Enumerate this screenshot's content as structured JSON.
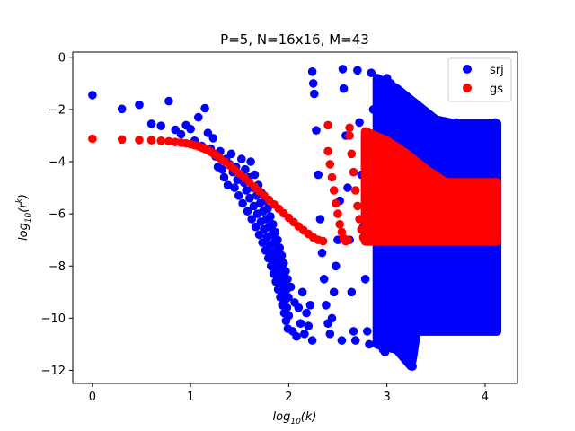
{
  "chart_data": {
    "type": "scatter",
    "title": "P=5, N=16x16, M=43",
    "xlabel": "log",
    "xlabel_sub": "10",
    "xlabel_arg": "(k)",
    "ylabel": "log",
    "ylabel_sub": "10",
    "ylabel_arg": "(r",
    "ylabel_sup": "k",
    "ylabel_close": ")",
    "xlim": [
      -0.2,
      4.33
    ],
    "ylim": [
      -12.5,
      0.2
    ],
    "xticks": [
      0,
      1,
      2,
      3,
      4
    ],
    "xtick_labels": [
      "0",
      "1",
      "2",
      "3",
      "4"
    ],
    "yticks": [
      0,
      -2,
      -4,
      -6,
      -8,
      -10,
      -12
    ],
    "ytick_labels": [
      "0",
      "−2",
      "−4",
      "−6",
      "−8",
      "−10",
      "−12"
    ],
    "grid": false,
    "legend_position": "top-right",
    "series": [
      {
        "name": "srj",
        "color": "#0000ff",
        "x": [
          0,
          0.301,
          0.477,
          0.602,
          0.699,
          0.778,
          0.845,
          0.903,
          0.954,
          1.0,
          1.041,
          1.079,
          1.114,
          1.146,
          1.176,
          1.204,
          1.23,
          1.255,
          1.279,
          1.301,
          1.322,
          1.342,
          1.362,
          1.38,
          1.398,
          1.415,
          1.431,
          1.447,
          1.462,
          1.477,
          1.491,
          1.505,
          1.519,
          1.531,
          1.544,
          1.556,
          1.568,
          1.58,
          1.591,
          1.602,
          1.613,
          1.623,
          1.633,
          1.643,
          1.653,
          1.663,
          1.672,
          1.681,
          1.69,
          1.699,
          1.708,
          1.716,
          1.724,
          1.732,
          1.74,
          1.748,
          1.756,
          1.763,
          1.771,
          1.778,
          1.785,
          1.792,
          1.799,
          1.806,
          1.813,
          1.82,
          1.826,
          1.833,
          1.839,
          1.845,
          1.851,
          1.857,
          1.863,
          1.869,
          1.875,
          1.881,
          1.886,
          1.892,
          1.898,
          1.903,
          1.908,
          1.914,
          1.919,
          1.924,
          1.929,
          1.934,
          1.94,
          1.944,
          1.949,
          1.954,
          1.959,
          1.964,
          1.968,
          1.973,
          1.978,
          1.982,
          1.987,
          1.991,
          1.996,
          2.0,
          2.02,
          2.04,
          2.06,
          2.08,
          2.1,
          2.12,
          2.14,
          2.16,
          2.18,
          2.2,
          2.22,
          2.24,
          2.24,
          2.25,
          2.26,
          2.28,
          2.3,
          2.32,
          2.34,
          2.36,
          2.38,
          2.4,
          2.42,
          2.44,
          2.46,
          2.48,
          2.5,
          2.52,
          2.54,
          2.55,
          2.56,
          2.58,
          2.6,
          2.62,
          2.64,
          2.66,
          2.68,
          2.7,
          2.72,
          2.74,
          2.76,
          2.78,
          2.8,
          2.82,
          2.84,
          2.86,
          2.88,
          2.9,
          2.92,
          2.94,
          2.96,
          2.98,
          3.0,
          3.04,
          3.08,
          3.12,
          3.16,
          3.2,
          3.24,
          3.26,
          3.3,
          3.4,
          3.5,
          3.6,
          3.7,
          3.8,
          3.9,
          4.0,
          4.1,
          4.12
        ],
        "y": [
          -1.45,
          -1.98,
          -1.82,
          -2.55,
          -2.63,
          -1.68,
          -2.78,
          -2.95,
          -2.6,
          -2.75,
          -3.2,
          -2.3,
          -3.4,
          -1.95,
          -2.9,
          -3.5,
          -3.1,
          -3.8,
          -4.2,
          -3.6,
          -4.3,
          -4.6,
          -3.9,
          -4.9,
          -4.1,
          -3.7,
          -4.4,
          -5.0,
          -4.2,
          -4.7,
          -5.3,
          -4.5,
          -3.9,
          -5.6,
          -4.8,
          -4.3,
          -5.1,
          -5.9,
          -4.6,
          -5.4,
          -4.0,
          -6.2,
          -5.0,
          -5.7,
          -4.5,
          -6.5,
          -5.3,
          -6.0,
          -4.9,
          -6.8,
          -5.6,
          -6.3,
          -5.2,
          -7.1,
          -5.9,
          -6.6,
          -5.5,
          -7.4,
          -6.2,
          -6.9,
          -5.8,
          -7.7,
          -6.5,
          -7.2,
          -6.1,
          -8.0,
          -6.8,
          -7.5,
          -6.4,
          -8.3,
          -7.1,
          -7.8,
          -6.7,
          -8.6,
          -7.4,
          -8.1,
          -7.0,
          -8.9,
          -7.7,
          -8.4,
          -7.3,
          -9.2,
          -8.0,
          -8.7,
          -7.6,
          -9.5,
          -8.3,
          -9.0,
          -7.9,
          -9.8,
          -8.6,
          -9.3,
          -8.2,
          -10.1,
          -8.9,
          -9.6,
          -8.5,
          -10.4,
          -9.2,
          -9.9,
          -8.8,
          -10.5,
          -9.4,
          -10.7,
          -9.6,
          -10.2,
          -9.0,
          -10.6,
          -9.8,
          -10.3,
          -9.5,
          -10.85,
          -0.55,
          -1.0,
          -1.4,
          -2.8,
          -4.5,
          -6.2,
          -7.5,
          -8.5,
          -9.5,
          -10.2,
          -10.6,
          -10.0,
          -9.0,
          -8.0,
          -7.0,
          -5.5,
          -10.85,
          -0.45,
          -1.2,
          -3.0,
          -5.0,
          -7.0,
          -9.0,
          -10.5,
          -10.85,
          -0.5,
          -2.5,
          -4.5,
          -6.5,
          -8.5,
          -10.5,
          -11.0,
          -0.6,
          -2.0,
          -4.0,
          -6.0,
          -8.0,
          -10.0,
          -11.2,
          -11.3,
          -0.8,
          -1.0,
          -1.3,
          -1.6,
          -2.0,
          -2.2,
          -2.4,
          -11.85,
          -2.5,
          -2.6,
          -2.55,
          -2.6,
          -2.5,
          -2.55,
          -2.6,
          -2.55,
          -2.5,
          -2.6
        ],
        "band": {
          "x_from": 2.9,
          "x_to": 4.12,
          "top_y": [
            -0.8,
            -1.2,
            -1.8,
            -2.4,
            -2.55,
            -2.55,
            -2.55
          ],
          "top_x": [
            2.9,
            3.1,
            3.3,
            3.5,
            3.7,
            3.9,
            4.12
          ],
          "bottom_y": [
            -11.0,
            -11.2,
            -11.85,
            -10.5,
            -10.5,
            -10.5,
            -10.5
          ],
          "bottom_x": [
            2.9,
            3.1,
            3.25,
            3.3,
            3.5,
            3.9,
            4.12
          ]
        }
      },
      {
        "name": "gs",
        "color": "#ff0000",
        "x": [
          0,
          0.301,
          0.477,
          0.602,
          0.699,
          0.778,
          0.845,
          0.903,
          0.954,
          1.0,
          1.041,
          1.079,
          1.114,
          1.146,
          1.176,
          1.204,
          1.23,
          1.255,
          1.279,
          1.301,
          1.35,
          1.4,
          1.45,
          1.5,
          1.55,
          1.6,
          1.65,
          1.7,
          1.75,
          1.8,
          1.85,
          1.9,
          1.95,
          2.0,
          2.05,
          2.1,
          2.15,
          2.2,
          2.25,
          2.3,
          2.35,
          2.4,
          2.4,
          2.42,
          2.44,
          2.46,
          2.48,
          2.5,
          2.52,
          2.54,
          2.56,
          2.58,
          2.6,
          2.62,
          2.62,
          2.64,
          2.66,
          2.68,
          2.7,
          2.72,
          2.74,
          2.76,
          2.78,
          2.8
        ],
        "y": [
          -3.12,
          -3.15,
          -3.17,
          -3.18,
          -3.2,
          -3.22,
          -3.25,
          -3.27,
          -3.3,
          -3.33,
          -3.37,
          -3.41,
          -3.46,
          -3.51,
          -3.56,
          -3.62,
          -3.68,
          -3.74,
          -3.8,
          -3.87,
          -4.0,
          -4.15,
          -4.3,
          -4.46,
          -4.62,
          -4.79,
          -4.96,
          -5.13,
          -5.3,
          -5.47,
          -5.64,
          -5.81,
          -5.98,
          -6.15,
          -6.32,
          -6.48,
          -6.63,
          -6.77,
          -6.9,
          -7.0,
          -7.05,
          -2.6,
          -3.6,
          -4.1,
          -4.6,
          -5.1,
          -5.6,
          -6.0,
          -6.4,
          -6.7,
          -6.95,
          -7.05,
          -7.0,
          -2.7,
          -3.0,
          -3.7,
          -4.4,
          -5.1,
          -5.7,
          -6.2,
          -6.6,
          -6.9,
          -7.0,
          -7.0
        ],
        "band": {
          "x_from": 2.78,
          "x_to": 4.12,
          "top_y": [
            -2.85,
            -3.2,
            -3.7,
            -4.3,
            -4.8,
            -4.8,
            -4.8
          ],
          "top_x": [
            2.78,
            3.0,
            3.2,
            3.4,
            3.6,
            3.9,
            4.12
          ],
          "bottom_y": [
            -7.05,
            -7.05,
            -7.05,
            -7.05,
            -7.05,
            -7.05,
            -7.05
          ],
          "bottom_x": [
            2.78,
            3.0,
            3.2,
            3.4,
            3.6,
            3.9,
            4.12
          ]
        }
      }
    ]
  }
}
